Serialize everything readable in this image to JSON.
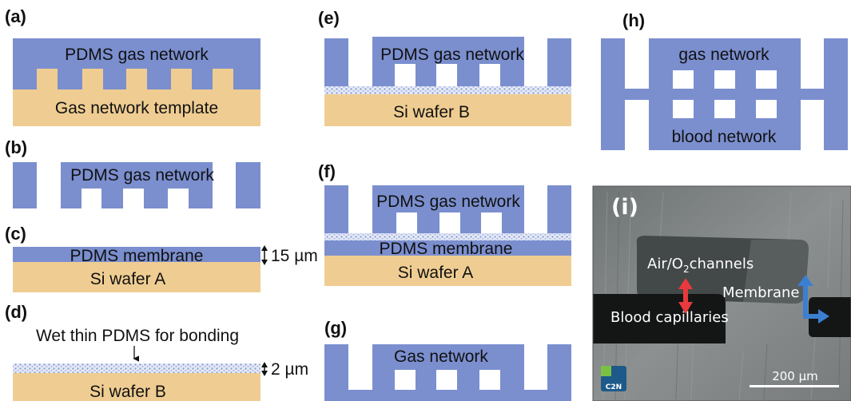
{
  "panels": {
    "a": {
      "label": "(a)",
      "top_text": "PDMS gas network",
      "bottom_text": "Gas network template"
    },
    "b": {
      "label": "(b)",
      "text": "PDMS gas network"
    },
    "c": {
      "label": "(c)",
      "top_text": "PDMS membrane",
      "bottom_text": "Si wafer A",
      "thickness": "15 µm"
    },
    "d": {
      "label": "(d)",
      "annotation": "Wet thin PDMS for bonding",
      "bottom_text": "Si wafer B",
      "thickness": "2 µm"
    },
    "e": {
      "label": "(e)",
      "top_text": "PDMS gas network",
      "bottom_text": "Si wafer B"
    },
    "f": {
      "label": "(f)",
      "top_text": "PDMS gas network",
      "mid_text": "PDMS membrane",
      "bottom_text": "Si wafer A"
    },
    "g": {
      "label": "(g)",
      "text": "Gas network"
    },
    "h": {
      "label": "(h)",
      "top_text": "gas network",
      "bottom_text": "blood network"
    },
    "i": {
      "label": "(i)",
      "air_label": "Air/O",
      "air_sub": "2",
      "air_suffix": "channels",
      "membrane_label": "Membrane",
      "blood_label": "Blood capillaries",
      "scale_bar": "200 µm",
      "logo": "C2N"
    }
  },
  "colors": {
    "pdms": "#7b8fcf",
    "wafer": "#efcd92",
    "bonding": "#c9d3ee",
    "red_arrow": "#e8393c",
    "blue_arrow": "#3b7fd0",
    "logo_green": "#7ac143",
    "logo_blue": "#1d5a8a"
  }
}
